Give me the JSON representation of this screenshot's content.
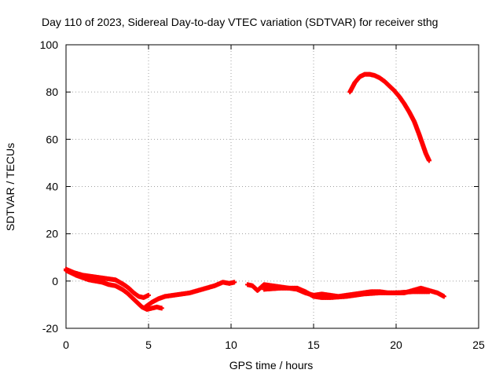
{
  "chart_data": {
    "type": "scatter",
    "title": "Day 110 of 2023, Sidereal Day-to-day VTEC variation (SDTVAR) for receiver sthg",
    "xlabel": "GPS time / hours",
    "ylabel": "SDTVAR / TECUs",
    "xlim": [
      0,
      25
    ],
    "ylim": [
      -20,
      100
    ],
    "x_ticks": [
      0,
      5,
      10,
      15,
      20,
      25
    ],
    "y_ticks": [
      -20,
      0,
      20,
      40,
      60,
      80,
      100
    ],
    "grid": true,
    "legend": "none",
    "marker": "+",
    "color": "#ff0000",
    "series": [
      {
        "name": "upper-arc",
        "x": [
          17.2,
          17.5,
          17.8,
          18.1,
          18.4,
          18.7,
          19.0,
          19.3,
          19.6,
          19.9,
          20.2,
          20.5,
          20.8,
          21.1,
          21.4,
          21.6,
          21.8,
          22.0
        ],
        "y": [
          80,
          84,
          86.5,
          87.5,
          87.5,
          87,
          86,
          84.5,
          82.5,
          80.5,
          78,
          75,
          71.5,
          67.5,
          62,
          58,
          54,
          51
        ]
      },
      {
        "name": "lower-band-a",
        "x": [
          0.0,
          0.3,
          0.6,
          1.0,
          1.4,
          1.8,
          2.2,
          2.6,
          3.0,
          3.4,
          3.7,
          4.0,
          4.3,
          4.6,
          4.9,
          5.2,
          5.5,
          5.8
        ],
        "y": [
          4.5,
          3.5,
          2.5,
          1.5,
          0.5,
          0,
          -0.5,
          -1.5,
          -2,
          -3.5,
          -5,
          -7,
          -9,
          -11,
          -12,
          -11.5,
          -11,
          -11.5
        ]
      },
      {
        "name": "lower-band-b",
        "x": [
          0.0,
          0.5,
          1.0,
          1.5,
          2.0,
          2.5,
          3.0,
          3.5,
          3.8,
          4.1,
          4.4,
          4.7,
          5.0
        ],
        "y": [
          5,
          3.5,
          2.5,
          2,
          1.5,
          1,
          0.5,
          -1.5,
          -3,
          -5,
          -6.5,
          -7,
          -6
        ]
      },
      {
        "name": "lower-band-c",
        "x": [
          4.8,
          5.2,
          5.6,
          6.0,
          6.5,
          7.0,
          7.5,
          8.0,
          8.5,
          9.0,
          9.5,
          9.9,
          10.2
        ],
        "y": [
          -11,
          -9,
          -7.5,
          -6.5,
          -6,
          -5.5,
          -5,
          -4,
          -3,
          -2,
          -0.5,
          -1,
          -0.5
        ]
      },
      {
        "name": "lower-band-d",
        "x": [
          11.0,
          11.3,
          11.6,
          12.0,
          12.5,
          13.0,
          13.5,
          14.0,
          14.5,
          15.0,
          15.5,
          16.0,
          16.5,
          17.0,
          17.5,
          18.0,
          18.5,
          19.0,
          19.5,
          20.0,
          20.5,
          21.0,
          21.5,
          22.0,
          22.5,
          22.9
        ],
        "y": [
          -1.5,
          -2,
          -4,
          -1.5,
          -2,
          -2.5,
          -3,
          -3.5,
          -5,
          -6,
          -5.5,
          -6,
          -6.5,
          -6,
          -5.5,
          -5,
          -4.5,
          -4.5,
          -5,
          -5,
          -5,
          -4,
          -3,
          -4,
          -5,
          -6.5
        ]
      },
      {
        "name": "lower-band-e",
        "x": [
          12.0,
          13.0,
          14.0,
          14.5,
          15.0,
          15.5,
          16.0,
          17.0,
          18.0,
          19.0,
          20.0,
          21.0,
          22.0
        ],
        "y": [
          -3.5,
          -3,
          -3,
          -4.5,
          -6.5,
          -7,
          -7,
          -6.5,
          -5.5,
          -5,
          -5,
          -4.5,
          -4.5
        ]
      }
    ]
  }
}
